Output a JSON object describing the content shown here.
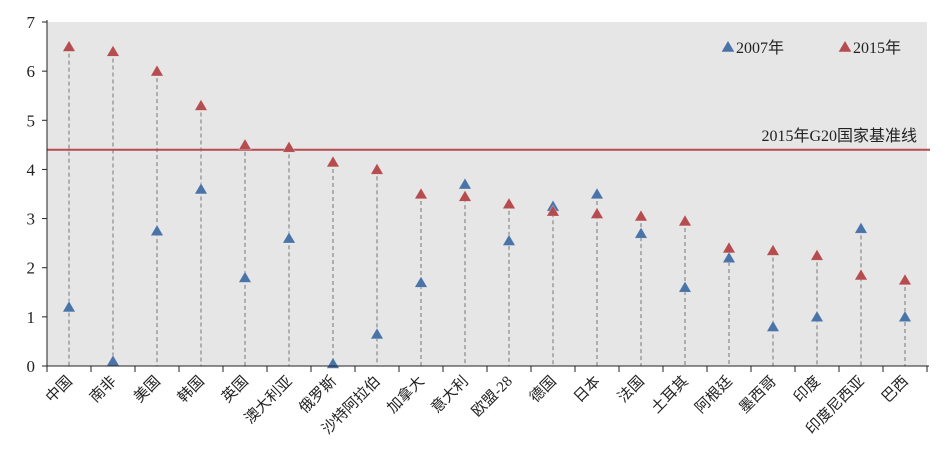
{
  "chart_data": {
    "type": "scatter",
    "title": "",
    "xlabel": "",
    "ylabel": "",
    "ylim": [
      0,
      7
    ],
    "yticks": [
      "0",
      "1",
      "2",
      "3",
      "4",
      "5",
      "6",
      "7"
    ],
    "grid": false,
    "legend_position": "top-right",
    "categories": [
      "中国",
      "南非",
      "美国",
      "韩国",
      "英国",
      "澳大利亚",
      "俄罗斯",
      "沙特阿拉伯",
      "加拿大",
      "意大利",
      "欧盟-28",
      "德国",
      "日本",
      "法国",
      "土耳其",
      "阿根廷",
      "墨西哥",
      "印度",
      "印度尼西亚",
      "巴西"
    ],
    "series": [
      {
        "name": "2007年",
        "color": "#4a74a8",
        "values": [
          1.2,
          0.1,
          2.75,
          3.6,
          1.8,
          2.6,
          0.05,
          0.65,
          1.7,
          3.7,
          2.55,
          3.25,
          3.5,
          2.7,
          1.6,
          2.2,
          0.8,
          1.0,
          2.8,
          1.0
        ]
      },
      {
        "name": "2015年",
        "color": "#b54c50",
        "values": [
          6.5,
          6.4,
          6.0,
          5.3,
          4.5,
          4.45,
          4.15,
          4.0,
          3.5,
          3.45,
          3.3,
          3.15,
          3.1,
          3.05,
          2.95,
          2.4,
          2.35,
          2.25,
          1.85,
          1.75
        ]
      }
    ],
    "reference_line": {
      "label": "2015年G20国家基准线",
      "value": 4.4,
      "color": "#b54c50"
    }
  }
}
